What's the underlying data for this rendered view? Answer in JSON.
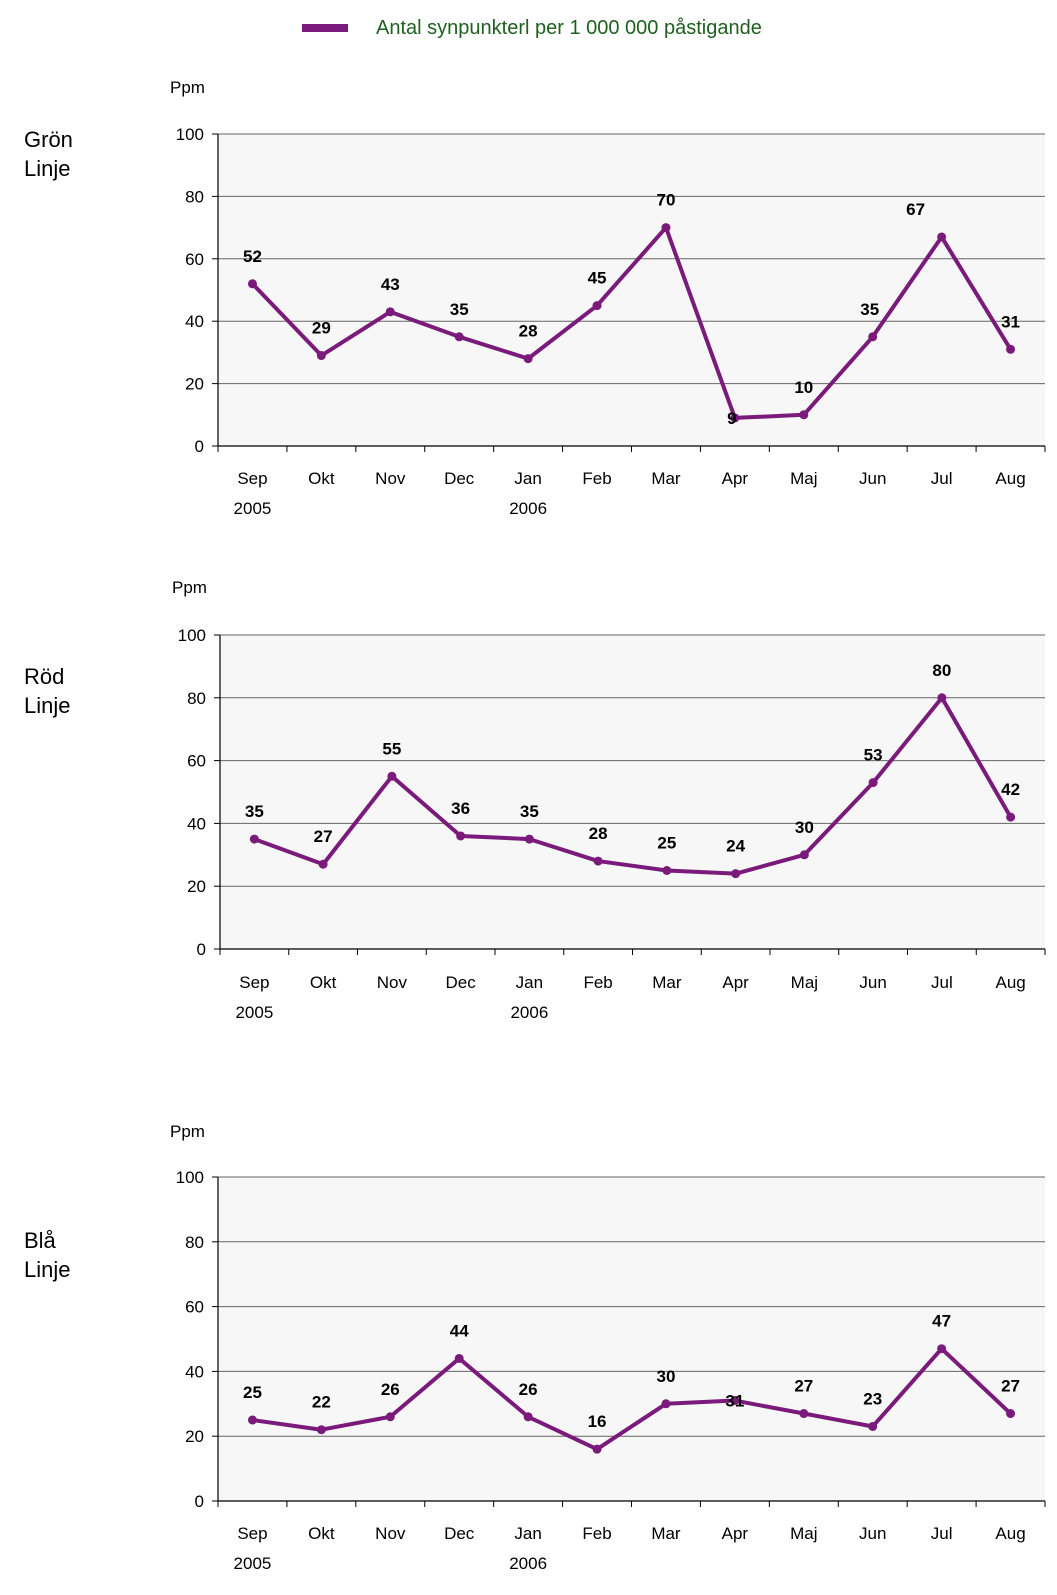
{
  "legend": {
    "label": "Antal synpunkterl per 1 000 000 påstigande",
    "color": "#7a1a7a"
  },
  "colors": {
    "line": "#7a1a7a",
    "plot_bg": "#f7f7f7",
    "grid": "#666666"
  },
  "chart_data": [
    {
      "type": "line",
      "panel_label": [
        "Grön",
        "Linje"
      ],
      "ylabel": "Ppm",
      "ylim": [
        0,
        100
      ],
      "yticks": [
        0,
        20,
        40,
        60,
        80,
        100
      ],
      "categories": [
        [
          "Sep",
          "2005"
        ],
        [
          "Okt",
          ""
        ],
        [
          "Nov",
          ""
        ],
        [
          "Dec",
          ""
        ],
        [
          "Jan",
          "2006"
        ],
        [
          "Feb",
          ""
        ],
        [
          "Mar",
          ""
        ],
        [
          "Apr",
          ""
        ],
        [
          "Maj",
          ""
        ],
        [
          "Jun",
          ""
        ],
        [
          "Jul",
          ""
        ],
        [
          "Aug",
          ""
        ]
      ],
      "series": [
        {
          "values": [
            52,
            29,
            43,
            35,
            28,
            45,
            70,
            9,
            10,
            35,
            67,
            31
          ]
        }
      ],
      "grid": true
    },
    {
      "type": "line",
      "panel_label": [
        "Röd",
        "Linje"
      ],
      "ylabel": "Ppm",
      "ylim": [
        0,
        100
      ],
      "yticks": [
        0,
        20,
        40,
        60,
        80,
        100
      ],
      "categories": [
        [
          "Sep",
          "2005"
        ],
        [
          "Okt",
          ""
        ],
        [
          "Nov",
          ""
        ],
        [
          "Dec",
          ""
        ],
        [
          "Jan",
          "2006"
        ],
        [
          "Feb",
          ""
        ],
        [
          "Mar",
          ""
        ],
        [
          "Apr",
          ""
        ],
        [
          "Maj",
          ""
        ],
        [
          "Jun",
          ""
        ],
        [
          "Jul",
          ""
        ],
        [
          "Aug",
          ""
        ]
      ],
      "series": [
        {
          "values": [
            35,
            27,
            55,
            36,
            35,
            28,
            25,
            24,
            30,
            53,
            80,
            42
          ]
        }
      ],
      "grid": true
    },
    {
      "type": "line",
      "panel_label": [
        "Blå",
        "Linje"
      ],
      "ylabel": "Ppm",
      "ylim": [
        0,
        100
      ],
      "yticks": [
        0,
        20,
        40,
        60,
        80,
        100
      ],
      "categories": [
        [
          "Sep",
          "2005"
        ],
        [
          "Okt",
          ""
        ],
        [
          "Nov",
          ""
        ],
        [
          "Dec",
          ""
        ],
        [
          "Jan",
          "2006"
        ],
        [
          "Feb",
          ""
        ],
        [
          "Mar",
          ""
        ],
        [
          "Apr",
          ""
        ],
        [
          "Maj",
          ""
        ],
        [
          "Jun",
          ""
        ],
        [
          "Jul",
          ""
        ],
        [
          "Aug",
          ""
        ]
      ],
      "series": [
        {
          "values": [
            25,
            22,
            26,
            44,
            26,
            16,
            30,
            31,
            27,
            23,
            47,
            27
          ]
        }
      ],
      "grid": true
    }
  ]
}
